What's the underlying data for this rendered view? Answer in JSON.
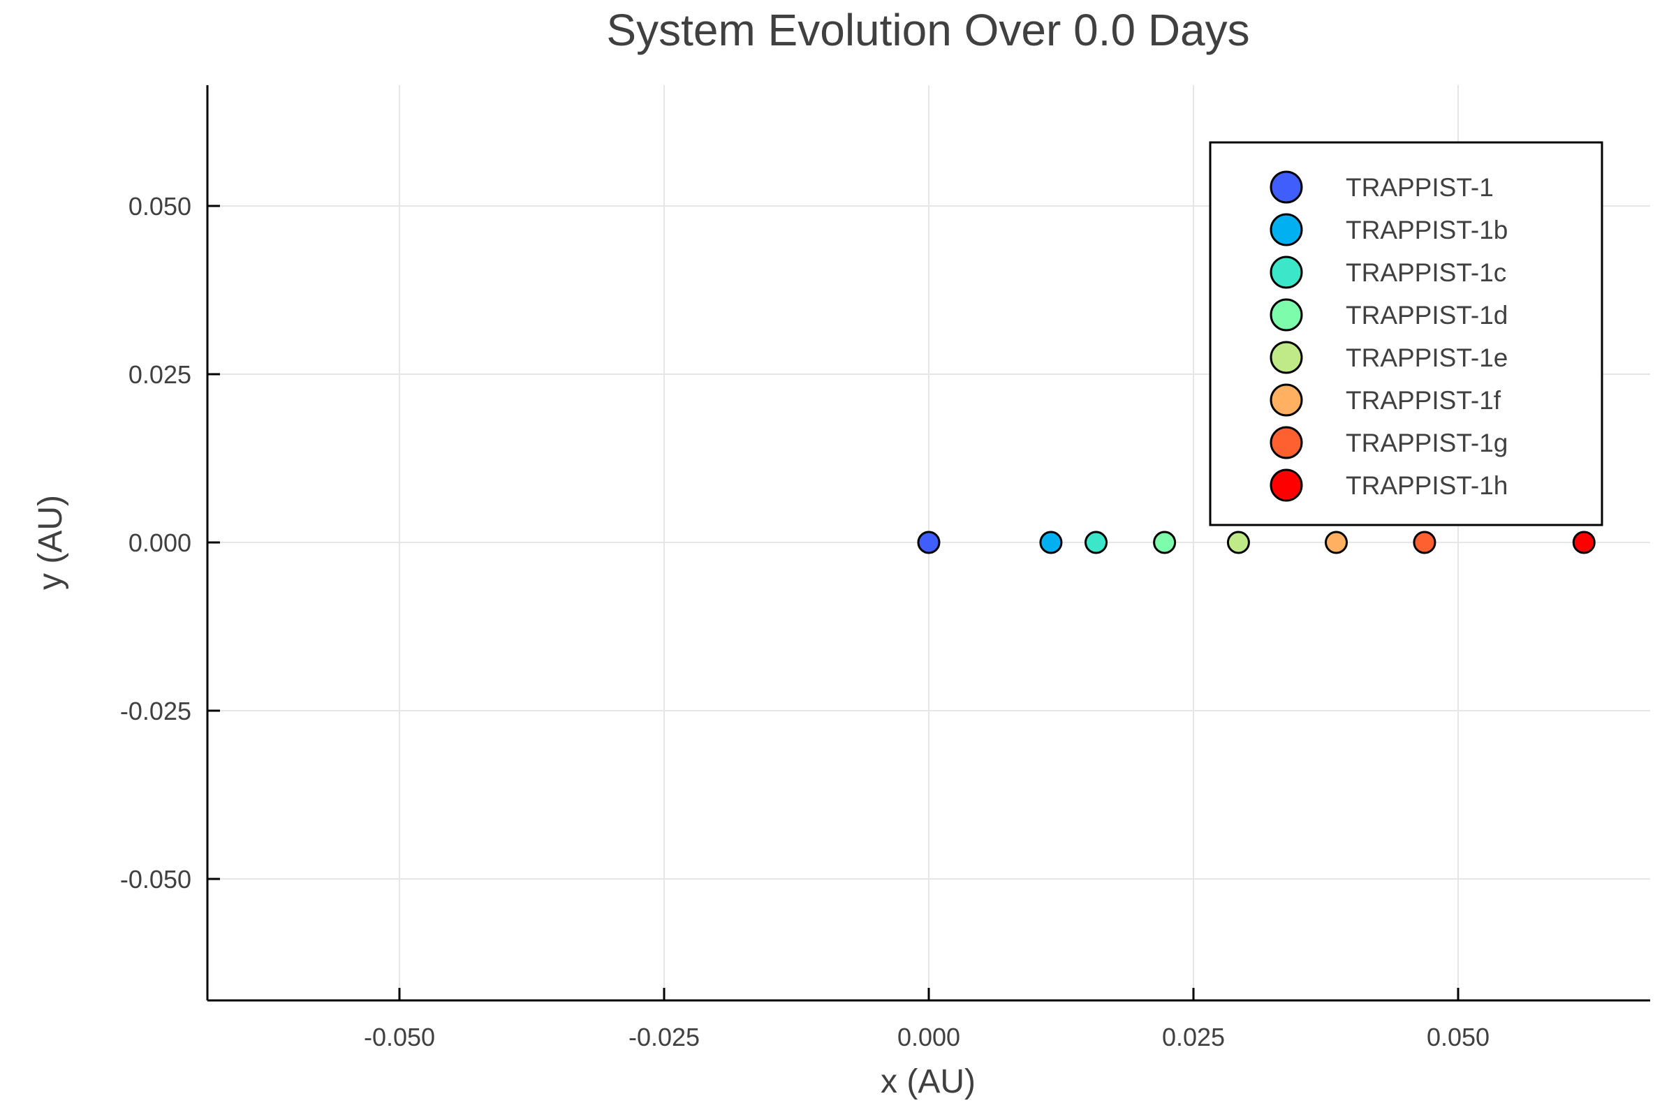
{
  "chart_data": {
    "type": "scatter",
    "title": "System Evolution Over 0.0 Days",
    "xlabel": "x (AU)",
    "ylabel": "y (AU)",
    "xlim": [
      -0.0685,
      0.0685
    ],
    "ylim": [
      -0.0685,
      0.0685
    ],
    "x_ticks": [
      -0.05,
      -0.025,
      0.0,
      0.025,
      0.05
    ],
    "x_tick_labels": [
      "-0.050",
      "-0.025",
      "0.000",
      "0.025",
      "0.050"
    ],
    "y_ticks": [
      0.05,
      0.025,
      0.0,
      -0.025,
      -0.05
    ],
    "y_tick_labels": [
      "0.050",
      "0.025",
      "0.000",
      "-0.025",
      "-0.050"
    ],
    "grid": true,
    "legend_position": "top-right",
    "series": [
      {
        "name": "TRAPPIST-1",
        "color": "#3f5efb",
        "x": [
          0.0
        ],
        "y": [
          0.0
        ]
      },
      {
        "name": "TRAPPIST-1b",
        "color": "#00b0f0",
        "x": [
          0.01154
        ],
        "y": [
          0.0
        ]
      },
      {
        "name": "TRAPPIST-1c",
        "color": "#3ce6c8",
        "x": [
          0.0158
        ],
        "y": [
          0.0
        ]
      },
      {
        "name": "TRAPPIST-1d",
        "color": "#7dfcac",
        "x": [
          0.02227
        ],
        "y": [
          0.0
        ]
      },
      {
        "name": "TRAPPIST-1e",
        "color": "#c0ea88",
        "x": [
          0.02925
        ],
        "y": [
          0.0
        ]
      },
      {
        "name": "TRAPPIST-1f",
        "color": "#ffb060",
        "x": [
          0.03849
        ],
        "y": [
          0.0
        ]
      },
      {
        "name": "TRAPPIST-1g",
        "color": "#ff6030",
        "x": [
          0.04683
        ],
        "y": [
          0.0
        ]
      },
      {
        "name": "TRAPPIST-1h",
        "color": "#ff0000",
        "x": [
          0.06189
        ],
        "y": [
          0.0
        ]
      }
    ]
  }
}
